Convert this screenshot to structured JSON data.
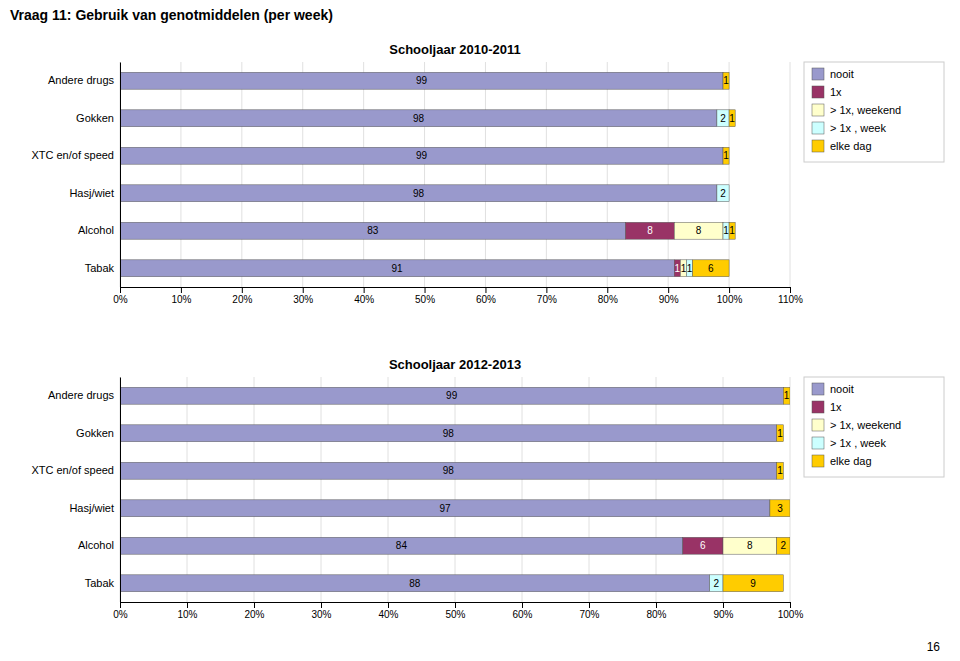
{
  "title": "Vraag 11: Gebruik van genotmiddelen (per week)",
  "annotations": [
    "16"
  ],
  "chart_data": [
    {
      "type": "bar",
      "orientation": "horizontal",
      "stacked": true,
      "grid": true,
      "legend": "right",
      "title": "Schooljaar 2010-2011",
      "categories": [
        "Andere drugs",
        "Gokken",
        "XTC en/of speed",
        "Hasj/wiet",
        "Alcohol",
        "Tabak"
      ],
      "series": [
        {
          "name": "nooit",
          "color": "#9999cc",
          "values": [
            99,
            98,
            99,
            98,
            83,
            91
          ],
          "value_labels": [
            "99",
            "98",
            "99",
            "98",
            "83",
            "91"
          ]
        },
        {
          "name": "1x",
          "color": "#993366",
          "values": [
            0,
            0,
            0,
            0,
            8,
            1
          ],
          "value_labels": [
            null,
            null,
            null,
            null,
            "8",
            "1"
          ]
        },
        {
          "name": "> 1x, weekend",
          "color": "#ffffcc",
          "values": [
            0,
            0,
            0,
            0,
            8,
            1
          ],
          "value_labels": [
            null,
            null,
            null,
            null,
            "8",
            "1"
          ]
        },
        {
          "name": "> 1x , week",
          "color": "#ccffff",
          "values": [
            0,
            2,
            0,
            2,
            1,
            1
          ],
          "value_labels": [
            null,
            "2",
            null,
            "2",
            "1",
            "1"
          ]
        },
        {
          "name": "elke dag",
          "color": "#ffcc00",
          "values": [
            1,
            1,
            1,
            0,
            1,
            6
          ],
          "value_labels": [
            "1",
            "1",
            "1",
            null,
            "1",
            "6"
          ]
        }
      ],
      "xlim": [
        0,
        110
      ],
      "xticks": [
        {
          "value": 0,
          "label": "0%"
        },
        {
          "value": 10,
          "label": "10%"
        },
        {
          "value": 20,
          "label": "20%"
        },
        {
          "value": 30,
          "label": "30%"
        },
        {
          "value": 40,
          "label": "40%"
        },
        {
          "value": 50,
          "label": "50%"
        },
        {
          "value": 60,
          "label": "60%"
        },
        {
          "value": 70,
          "label": "70%"
        },
        {
          "value": 80,
          "label": "80%"
        },
        {
          "value": 90,
          "label": "90%"
        },
        {
          "value": 100,
          "label": "100%"
        },
        {
          "value": 110,
          "label": "110%"
        }
      ]
    },
    {
      "type": "bar",
      "orientation": "horizontal",
      "stacked": true,
      "grid": true,
      "legend": "right",
      "title": "Schooljaar 2012-2013",
      "categories": [
        "Andere drugs",
        "Gokken",
        "XTC en/of speed",
        "Hasj/wiet",
        "Alcohol",
        "Tabak"
      ],
      "series": [
        {
          "name": "nooit",
          "color": "#9999cc",
          "values": [
            99,
            98,
            98,
            97,
            84,
            88
          ],
          "value_labels": [
            "99",
            "98",
            "98",
            "97",
            "84",
            "88"
          ]
        },
        {
          "name": "1x",
          "color": "#993366",
          "values": [
            0,
            0,
            0,
            0,
            6,
            0
          ],
          "value_labels": [
            null,
            null,
            null,
            null,
            "6",
            null
          ]
        },
        {
          "name": "> 1x, weekend",
          "color": "#ffffcc",
          "values": [
            0,
            0,
            0,
            0,
            8,
            0
          ],
          "value_labels": [
            null,
            null,
            null,
            null,
            "8",
            null
          ]
        },
        {
          "name": "> 1x , week",
          "color": "#ccffff",
          "values": [
            0,
            0,
            0,
            0,
            0,
            2
          ],
          "value_labels": [
            null,
            null,
            null,
            null,
            null,
            "2"
          ]
        },
        {
          "name": "elke dag",
          "color": "#ffcc00",
          "values": [
            1,
            1,
            1,
            3,
            2,
            9
          ],
          "value_labels": [
            "1",
            "1",
            "1",
            "3",
            "2",
            "9"
          ]
        }
      ],
      "xlim": [
        0,
        100
      ],
      "xticks": [
        {
          "value": 0,
          "label": "0%"
        },
        {
          "value": 10,
          "label": "10%"
        },
        {
          "value": 20,
          "label": "20%"
        },
        {
          "value": 30,
          "label": "30%"
        },
        {
          "value": 40,
          "label": "40%"
        },
        {
          "value": 50,
          "label": "50%"
        },
        {
          "value": 60,
          "label": "60%"
        },
        {
          "value": 70,
          "label": "70%"
        },
        {
          "value": 80,
          "label": "80%"
        },
        {
          "value": 90,
          "label": "90%"
        },
        {
          "value": 100,
          "label": "100%"
        }
      ]
    }
  ]
}
